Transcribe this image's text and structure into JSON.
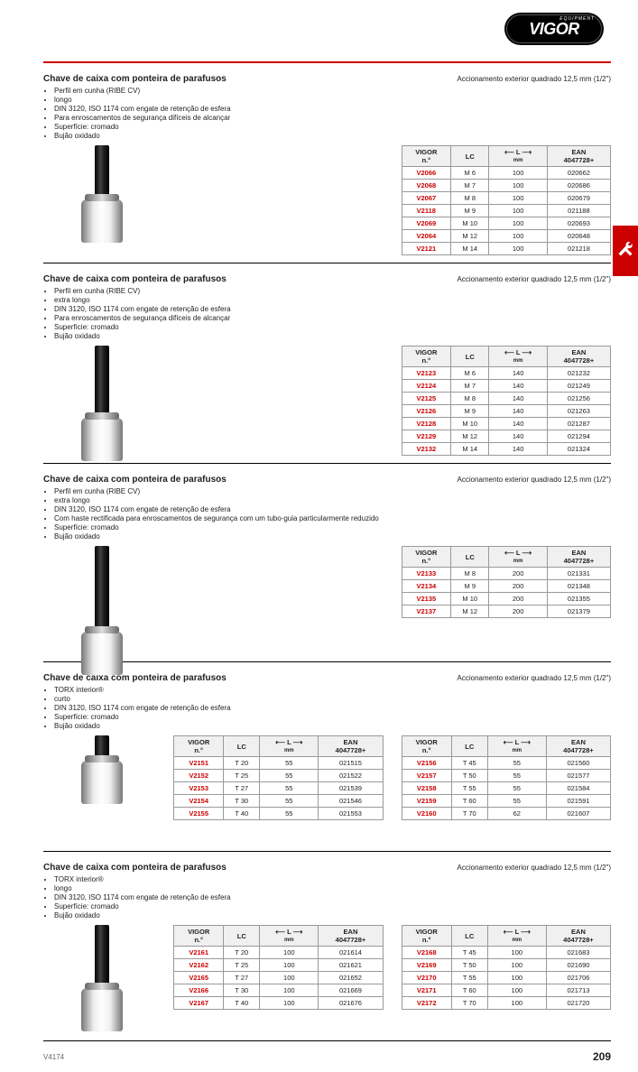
{
  "brand": {
    "name": "VIGOR",
    "tag": "EQUIPMENT"
  },
  "footer": {
    "version": "V4174",
    "page": "209"
  },
  "columns": {
    "code": "VIGOR\nn.°",
    "lc": "LC",
    "l": "L",
    "l_unit": "mm",
    "ean": "EAN\n4047728+"
  },
  "sections": [
    {
      "id": "s1",
      "title": "Chave de caixa com ponteira de parafusos",
      "drive": "Accionamento exterior quadrado 12,5 mm (1/2\")",
      "bullets": [
        "Perfil em cunha (RIBE CV)",
        "longo",
        "DIN 3120, ISO 1174 com engate de retenção de esfera",
        "Para enroscamentos de segurança difíceis de alcançar",
        "Superfície: cromado",
        "Bujão oxidado"
      ],
      "shaft_h": 60,
      "tables": [
        {
          "rows": [
            {
              "code": "V2066",
              "lc": "M 6",
              "l": "100",
              "ean": "020662"
            },
            {
              "code": "V2068",
              "lc": "M 7",
              "l": "100",
              "ean": "020686"
            },
            {
              "code": "V2067",
              "lc": "M 8",
              "l": "100",
              "ean": "020679"
            },
            {
              "code": "V2118",
              "lc": "M 9",
              "l": "100",
              "ean": "021188"
            },
            {
              "code": "V2069",
              "lc": "M 10",
              "l": "100",
              "ean": "020693"
            },
            {
              "code": "V2064",
              "lc": "M 12",
              "l": "100",
              "ean": "020648"
            },
            {
              "code": "V2121",
              "lc": "M 14",
              "l": "100",
              "ean": "021218"
            }
          ]
        }
      ]
    },
    {
      "id": "s2",
      "title": "Chave de caixa com ponteira de parafusos",
      "drive": "Accionamento exterior quadrado 12,5 mm (1/2\")",
      "bullets": [
        "Perfil em cunha (RIBE CV)",
        "extra longo",
        "DIN 3120, ISO 1174 com engate de retenção de esfera",
        "Para enroscamentos de segurança difíceis de alcançar",
        "Superfície: cromado",
        "Bujão oxidado"
      ],
      "shaft_h": 80,
      "tables": [
        {
          "rows": [
            {
              "code": "V2123",
              "lc": "M 6",
              "l": "140",
              "ean": "021232"
            },
            {
              "code": "V2124",
              "lc": "M 7",
              "l": "140",
              "ean": "021249"
            },
            {
              "code": "V2125",
              "lc": "M 8",
              "l": "140",
              "ean": "021256"
            },
            {
              "code": "V2126",
              "lc": "M 9",
              "l": "140",
              "ean": "021263"
            },
            {
              "code": "V2128",
              "lc": "M 10",
              "l": "140",
              "ean": "021287"
            },
            {
              "code": "V2129",
              "lc": "M 12",
              "l": "140",
              "ean": "021294"
            },
            {
              "code": "V2132",
              "lc": "M 14",
              "l": "140",
              "ean": "021324"
            }
          ]
        }
      ]
    },
    {
      "id": "s3",
      "title": "Chave de caixa com ponteira de parafusos",
      "drive": "Accionamento exterior quadrado 12,5 mm (1/2\")",
      "bullets": [
        "Perfil em cunha (RIBE CV)",
        "extra longo",
        "DIN 3120, ISO 1174 com engate de retenção de esfera",
        "Com haste rectificada para enroscamentos de segurança com um tubo-guia particularmente reduzido",
        "Superfície: cromado",
        "Bujão oxidado"
      ],
      "shaft_h": 95,
      "tables": [
        {
          "rows": [
            {
              "code": "V2133",
              "lc": "M 8",
              "l": "200",
              "ean": "021331"
            },
            {
              "code": "V2134",
              "lc": "M 9",
              "l": "200",
              "ean": "021348"
            },
            {
              "code": "V2135",
              "lc": "M 10",
              "l": "200",
              "ean": "021355"
            },
            {
              "code": "V2137",
              "lc": "M 12",
              "l": "200",
              "ean": "021379"
            }
          ]
        }
      ]
    },
    {
      "id": "s4",
      "title": "Chave de caixa com ponteira de parafusos",
      "drive": "Accionamento exterior quadrado 12,5 mm (1/2\")",
      "bullets": [
        "TORX interior®",
        "curto",
        "DIN 3120, ISO 1174 com engate de retenção de esfera",
        "Superfície: cromado",
        "Bujão oxidado"
      ],
      "shaft_h": 28,
      "tables": [
        {
          "rows": [
            {
              "code": "V2151",
              "lc": "T 20",
              "l": "55",
              "ean": "021515"
            },
            {
              "code": "V2152",
              "lc": "T 25",
              "l": "55",
              "ean": "021522"
            },
            {
              "code": "V2153",
              "lc": "T 27",
              "l": "55",
              "ean": "021539"
            },
            {
              "code": "V2154",
              "lc": "T 30",
              "l": "55",
              "ean": "021546"
            },
            {
              "code": "V2155",
              "lc": "T 40",
              "l": "55",
              "ean": "021553"
            }
          ]
        },
        {
          "rows": [
            {
              "code": "V2156",
              "lc": "T 45",
              "l": "55",
              "ean": "021560"
            },
            {
              "code": "V2157",
              "lc": "T 50",
              "l": "55",
              "ean": "021577"
            },
            {
              "code": "V2158",
              "lc": "T 55",
              "l": "55",
              "ean": "021584"
            },
            {
              "code": "V2159",
              "lc": "T 60",
              "l": "55",
              "ean": "021591"
            },
            {
              "code": "V2160",
              "lc": "T 70",
              "l": "62",
              "ean": "021607"
            }
          ]
        }
      ]
    },
    {
      "id": "s5",
      "title": "Chave de caixa com ponteira de parafusos",
      "drive": "Accionamento exterior quadrado 12,5 mm (1/2\")",
      "bullets": [
        "TORX interior®",
        "longo",
        "DIN 3120, ISO 1174 com engate de retenção de esfera",
        "Superfície: cromado",
        "Bujão oxidado"
      ],
      "shaft_h": 70,
      "tables": [
        {
          "rows": [
            {
              "code": "V2161",
              "lc": "T 20",
              "l": "100",
              "ean": "021614"
            },
            {
              "code": "V2162",
              "lc": "T 25",
              "l": "100",
              "ean": "021621"
            },
            {
              "code": "V2165",
              "lc": "T 27",
              "l": "100",
              "ean": "021652"
            },
            {
              "code": "V2166",
              "lc": "T 30",
              "l": "100",
              "ean": "021669"
            },
            {
              "code": "V2167",
              "lc": "T 40",
              "l": "100",
              "ean": "021676"
            }
          ]
        },
        {
          "rows": [
            {
              "code": "V2168",
              "lc": "T 45",
              "l": "100",
              "ean": "021683"
            },
            {
              "code": "V2169",
              "lc": "T 50",
              "l": "100",
              "ean": "021690"
            },
            {
              "code": "V2170",
              "lc": "T 55",
              "l": "100",
              "ean": "021706"
            },
            {
              "code": "V2171",
              "lc": "T 60",
              "l": "100",
              "ean": "021713"
            },
            {
              "code": "V2172",
              "lc": "T 70",
              "l": "100",
              "ean": "021720"
            }
          ]
        }
      ]
    }
  ]
}
